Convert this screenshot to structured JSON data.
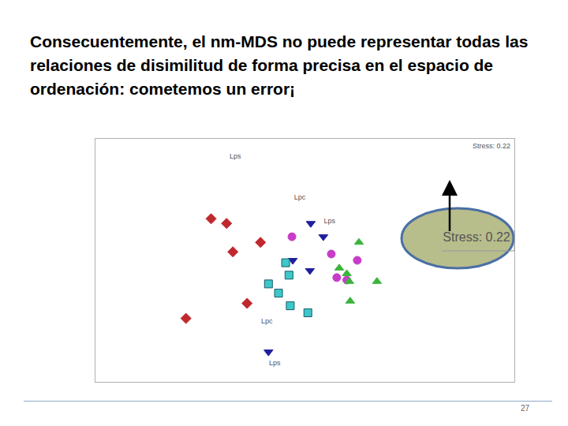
{
  "heading": "Consecuentemente, el nm-MDS no puede representar todas las relaciones de disimilitud de forma precisa en el espacio de ordenación: cometemos un error¡",
  "page": 27,
  "chart_data": {
    "type": "scatter",
    "stress": "Stress: 0.22",
    "xlim": [
      0,
      100
    ],
    "ylim": [
      0,
      100
    ],
    "tick_labels": false,
    "grid": false,
    "series": [
      {
        "color": "#c0282d",
        "marker": "diamond",
        "x": [
          27.6,
          31.3,
          32.8,
          39.4,
          36.2,
          21.6
        ],
        "values": [
          67.1,
          65.2,
          53.5,
          57.4,
          32.3,
          26.1
        ]
      },
      {
        "color": "#1f1f9e",
        "marker": "triangle-down",
        "x": [
          51.4,
          54.4,
          47.1,
          51.2,
          41.3
        ],
        "values": [
          65.2,
          59.7,
          50.0,
          45.8,
          12.3
        ]
      },
      {
        "color": "#c83cc8",
        "marker": "circle",
        "x": [
          46.9,
          62.5,
          57.6,
          60.0,
          56.3
        ],
        "values": [
          59.7,
          50.0,
          42.9,
          41.9,
          52.6
        ]
      },
      {
        "color": "#3cc8c8",
        "marker": "square",
        "x": [
          45.4,
          46.2,
          41.3,
          43.7,
          46.5,
          50.7
        ],
        "values": [
          49.0,
          43.9,
          40.3,
          36.5,
          31.3,
          28.4
        ]
      },
      {
        "color": "#3cb43c",
        "marker": "triangle-up",
        "x": [
          62.9,
          58.2,
          60.0,
          60.6,
          67.2,
          60.8
        ],
        "values": [
          57.4,
          46.8,
          44.5,
          41.3,
          41.3,
          33.2
        ]
      }
    ],
    "point_labels": [
      {
        "x": 33.4,
        "y": 92.6,
        "text": "Lps"
      },
      {
        "x": 48.8,
        "y": 75.8,
        "text": "Lpc"
      },
      {
        "x": 55.9,
        "y": 66.1,
        "text": "Lps"
      },
      {
        "x": 40.9,
        "y": 24.8,
        "text": "Lpc"
      },
      {
        "x": 42.8,
        "y": 7.7,
        "text": "Lps"
      }
    ]
  }
}
